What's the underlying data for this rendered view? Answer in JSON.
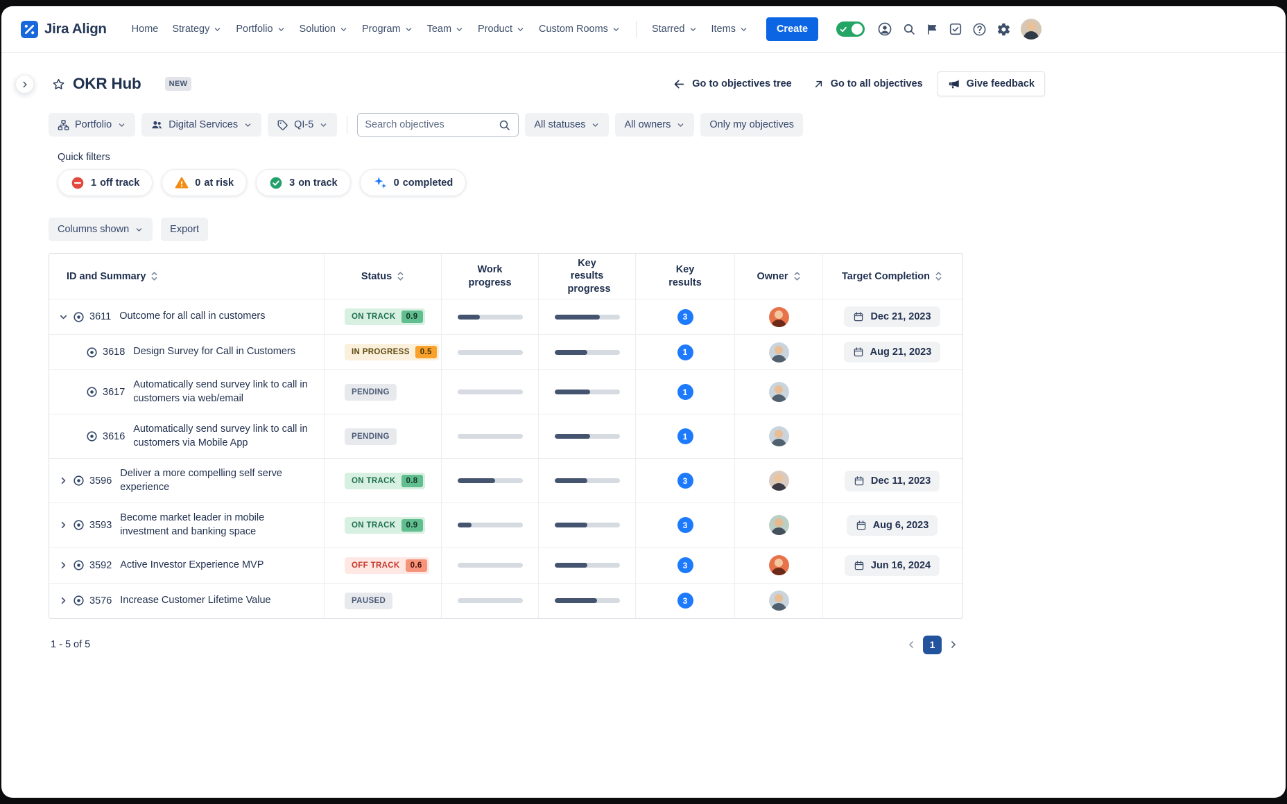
{
  "navbar": {
    "logo_text": "Jira Align",
    "items": [
      {
        "label": "Home",
        "caret": false
      },
      {
        "label": "Strategy",
        "caret": true
      },
      {
        "label": "Portfolio",
        "caret": true
      },
      {
        "label": "Solution",
        "caret": true
      },
      {
        "label": "Program",
        "caret": true
      },
      {
        "label": "Team",
        "caret": true
      },
      {
        "label": "Product",
        "caret": true
      },
      {
        "label": "Custom Rooms",
        "caret": true
      },
      {
        "label": "Starred",
        "caret": true
      },
      {
        "label": "Items",
        "caret": true
      }
    ],
    "create_label": "Create"
  },
  "header": {
    "title": "OKR Hub",
    "new_badge": "NEW",
    "go_tree": "Go to objectives tree",
    "go_all": "Go to all objectives",
    "feedback": "Give feedback"
  },
  "filter_bar": {
    "portfolio": "Portfolio",
    "program": "Digital Services",
    "increment": "QI-5",
    "search_placeholder": "Search objectives",
    "statuses": "All statuses",
    "owners": "All owners",
    "only_mine": "Only my objectives"
  },
  "quick_filters": {
    "label": "Quick filters",
    "pills": [
      {
        "count": "1",
        "label": "off track",
        "icon": "no-entry-circle"
      },
      {
        "count": "0",
        "label": "at risk",
        "icon": "warning-triangle"
      },
      {
        "count": "3",
        "label": "on track",
        "icon": "check-circle"
      },
      {
        "count": "0",
        "label": "completed",
        "icon": "sparkles"
      }
    ]
  },
  "toolbar": {
    "columns_shown": "Columns shown",
    "export": "Export"
  },
  "table": {
    "columns": [
      {
        "label": "ID and Summary",
        "sortable": true
      },
      {
        "label": "Status",
        "sortable": true
      },
      {
        "label": "Work progress",
        "sortable": false
      },
      {
        "label": "Key results progress",
        "sortable": false
      },
      {
        "label": "Key results",
        "sortable": false
      },
      {
        "label": "Owner",
        "sortable": true
      },
      {
        "label": "Target Completion",
        "sortable": true
      }
    ],
    "rows": [
      {
        "id": "3611",
        "summary": "Outcome for all call in customers",
        "status": "ON TRACK",
        "status_value": "0.9",
        "work_pct": 35,
        "kr_pct": 70,
        "key_results": "3",
        "date": "Dec 21, 2023"
      },
      {
        "id": "3618",
        "summary": "Design Survey for Call in Customers",
        "status": "IN PROGRESS",
        "status_value": "0.5",
        "work_pct": 0,
        "kr_pct": 50,
        "key_results": "1",
        "date": "Aug 21, 2023"
      },
      {
        "id": "3617",
        "summary": "Automatically send survey link to call in customers via web/email",
        "status": "PENDING",
        "status_value": "",
        "work_pct": 0,
        "kr_pct": 55,
        "key_results": "1",
        "date": ""
      },
      {
        "id": "3616",
        "summary": "Automatically send survey link to call in customers via Mobile App",
        "status": "PENDING",
        "status_value": "",
        "work_pct": 0,
        "kr_pct": 55,
        "key_results": "1",
        "date": ""
      },
      {
        "id": "3596",
        "summary": "Deliver a more compelling self serve experience",
        "status": "ON TRACK",
        "status_value": "0.8",
        "work_pct": 58,
        "kr_pct": 50,
        "key_results": "3",
        "date": "Dec 11, 2023"
      },
      {
        "id": "3593",
        "summary": "Become market leader in mobile investment and banking space",
        "status": "ON TRACK",
        "status_value": "0.9",
        "work_pct": 22,
        "kr_pct": 50,
        "key_results": "3",
        "date": "Aug 6, 2023"
      },
      {
        "id": "3592",
        "summary": "Active Investor Experience MVP",
        "status": "OFF TRACK",
        "status_value": "0.6",
        "work_pct": 0,
        "kr_pct": 50,
        "key_results": "3",
        "date": "Jun 16, 2024"
      },
      {
        "id": "3576",
        "summary": "Increase Customer Lifetime Value",
        "status": "PAUSED",
        "status_value": "",
        "work_pct": 0,
        "kr_pct": 65,
        "key_results": "3",
        "date": ""
      }
    ]
  },
  "footer": {
    "range_text": "1 - 5 of 5",
    "page": "1"
  },
  "colors": {
    "accent_blue": "#0C66E4",
    "on_track_green": "#22A06B",
    "off_track_red": "#E2483D",
    "at_risk_orange": "#F18D13",
    "key_results_blue": "#1D7AFC"
  }
}
